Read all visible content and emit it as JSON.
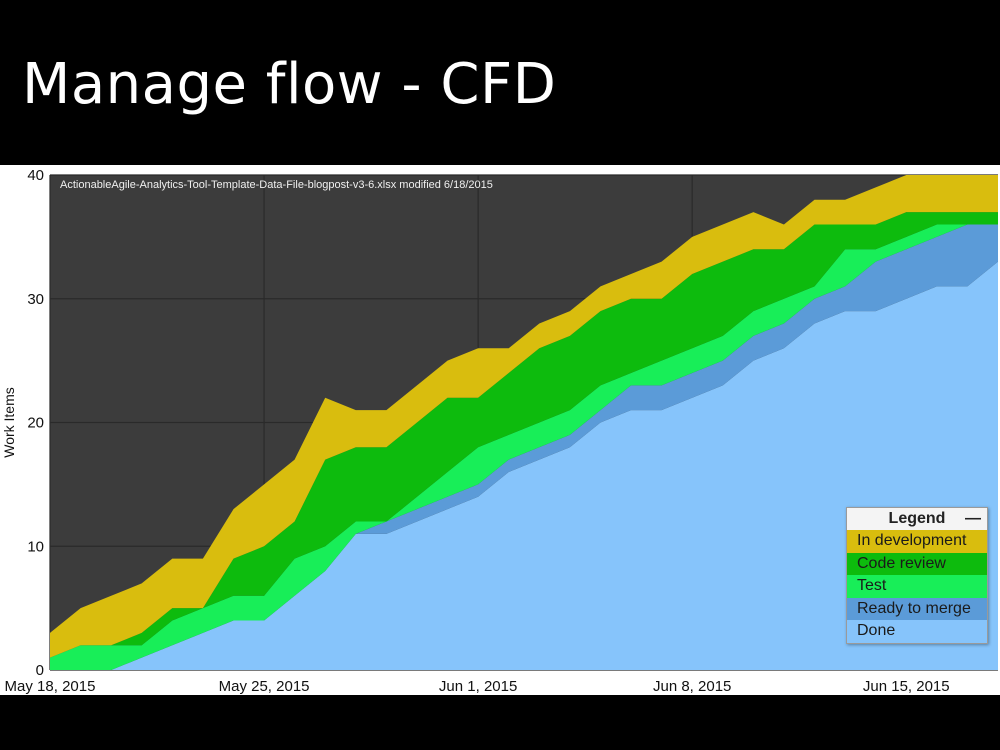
{
  "slide": {
    "title": "Manage flow - CFD"
  },
  "colors": {
    "plot_background": "#3c3c3c",
    "grid": "#2a2a2a",
    "in_development": "#d9bd0e",
    "code_review": "#0dbb0d",
    "test": "#18ee58",
    "ready_to_merge": "#5b9bd8",
    "done": "#86c4fb"
  },
  "legend": {
    "title": "Legend",
    "collapse_symbol": "—",
    "placement": "bottom-right"
  },
  "chart_data": {
    "type": "area",
    "stacked": true,
    "subtitle": "ActionableAgile-Analytics-Tool-Template-Data-File-blogpost-v3-6.xlsx modified 6/18/2015",
    "ylabel": "Work Items",
    "xlabel": "",
    "ylim": [
      0,
      40
    ],
    "yticks": [
      0,
      10,
      20,
      30,
      40
    ],
    "xticks": [
      "May 18, 2015",
      "May 25, 2015",
      "Jun 1, 2015",
      "Jun 8, 2015",
      "Jun 15, 2015"
    ],
    "x_start": "2015-05-18",
    "x_end": "2015-06-18",
    "grid": true,
    "x": [
      "2015-05-18",
      "2015-05-19",
      "2015-05-20",
      "2015-05-21",
      "2015-05-22",
      "2015-05-23",
      "2015-05-24",
      "2015-05-25",
      "2015-05-26",
      "2015-05-27",
      "2015-05-28",
      "2015-05-29",
      "2015-05-30",
      "2015-05-31",
      "2015-06-01",
      "2015-06-02",
      "2015-06-03",
      "2015-06-04",
      "2015-06-05",
      "2015-06-06",
      "2015-06-07",
      "2015-06-08",
      "2015-06-09",
      "2015-06-10",
      "2015-06-11",
      "2015-06-12",
      "2015-06-13",
      "2015-06-14",
      "2015-06-15",
      "2015-06-16",
      "2015-06-17",
      "2015-06-18"
    ],
    "series": [
      {
        "name": "Done",
        "color_key": "done",
        "values": [
          0,
          0,
          0,
          1,
          2,
          3,
          4,
          4,
          6,
          8,
          11,
          11,
          12,
          13,
          14,
          16,
          17,
          18,
          20,
          21,
          21,
          22,
          23,
          25,
          26,
          28,
          29,
          29,
          30,
          31,
          31,
          33
        ]
      },
      {
        "name": "Ready to merge",
        "color_key": "ready_to_merge",
        "values": [
          0,
          0,
          0,
          0,
          0,
          0,
          0,
          0,
          0,
          0,
          0,
          1,
          1,
          1,
          1,
          1,
          1,
          1,
          1,
          2,
          2,
          2,
          2,
          2,
          2,
          2,
          2,
          4,
          4,
          4,
          5,
          3
        ]
      },
      {
        "name": "Test",
        "color_key": "test",
        "values": [
          1,
          2,
          2,
          1,
          2,
          2,
          2,
          2,
          3,
          2,
          1,
          0,
          1,
          2,
          3,
          2,
          2,
          2,
          2,
          1,
          2,
          2,
          2,
          2,
          2,
          1,
          3,
          1,
          1,
          1,
          0,
          0
        ]
      },
      {
        "name": "Code review",
        "color_key": "code_review",
        "values": [
          0,
          0,
          0,
          1,
          1,
          0,
          3,
          4,
          3,
          7,
          6,
          6,
          6,
          6,
          4,
          5,
          6,
          6,
          6,
          6,
          5,
          6,
          6,
          5,
          4,
          5,
          2,
          2,
          2,
          1,
          1,
          1
        ]
      },
      {
        "name": "In development",
        "color_key": "in_development",
        "values": [
          2,
          3,
          4,
          4,
          4,
          4,
          4,
          5,
          5,
          5,
          3,
          3,
          3,
          3,
          4,
          2,
          2,
          2,
          2,
          2,
          3,
          3,
          3,
          3,
          2,
          2,
          2,
          3,
          3,
          3,
          3,
          3
        ]
      }
    ]
  }
}
